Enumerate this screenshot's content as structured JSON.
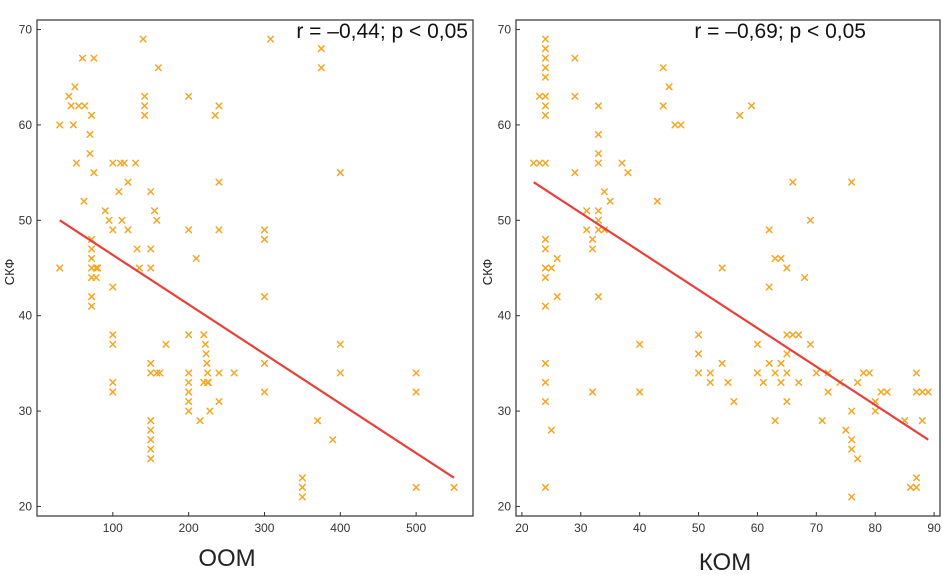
{
  "chart_data": [
    {
      "type": "scatter",
      "title": "",
      "xlabel": "ООМ",
      "ylabel": "СКФ",
      "xlim": [
        0,
        575
      ],
      "ylim": [
        19,
        71
      ],
      "xticks": [
        100,
        200,
        300,
        400,
        500
      ],
      "yticks": [
        20,
        30,
        40,
        50,
        60,
        70
      ],
      "annotation": "r = –0,44; p < 0,05",
      "trendline": {
        "x": [
          30,
          550
        ],
        "y": [
          50,
          23
        ]
      },
      "points": [
        [
          30,
          60
        ],
        [
          30,
          45
        ],
        [
          42,
          63
        ],
        [
          45,
          62
        ],
        [
          48,
          60
        ],
        [
          50,
          64
        ],
        [
          52,
          56
        ],
        [
          55,
          62
        ],
        [
          60,
          67
        ],
        [
          62,
          52
        ],
        [
          63,
          62
        ],
        [
          70,
          59
        ],
        [
          70,
          57
        ],
        [
          72,
          61
        ],
        [
          72,
          48
        ],
        [
          72,
          47
        ],
        [
          72,
          46
        ],
        [
          72,
          45
        ],
        [
          72,
          44
        ],
        [
          72,
          42
        ],
        [
          72,
          41
        ],
        [
          75,
          67
        ],
        [
          75,
          55
        ],
        [
          78,
          45
        ],
        [
          78,
          44
        ],
        [
          80,
          45
        ],
        [
          90,
          51
        ],
        [
          95,
          50
        ],
        [
          100,
          56
        ],
        [
          100,
          49
        ],
        [
          100,
          43
        ],
        [
          100,
          38
        ],
        [
          100,
          37
        ],
        [
          100,
          33
        ],
        [
          100,
          32
        ],
        [
          108,
          53
        ],
        [
          110,
          56
        ],
        [
          112,
          50
        ],
        [
          115,
          56
        ],
        [
          120,
          54
        ],
        [
          120,
          49
        ],
        [
          130,
          56
        ],
        [
          132,
          47
        ],
        [
          135,
          45
        ],
        [
          140,
          69
        ],
        [
          142,
          62
        ],
        [
          142,
          61
        ],
        [
          142,
          63
        ],
        [
          150,
          53
        ],
        [
          150,
          47
        ],
        [
          150,
          45
        ],
        [
          150,
          35
        ],
        [
          150,
          34
        ],
        [
          150,
          29
        ],
        [
          150,
          28
        ],
        [
          150,
          27
        ],
        [
          150,
          26
        ],
        [
          150,
          25
        ],
        [
          155,
          51
        ],
        [
          158,
          50
        ],
        [
          158,
          34
        ],
        [
          160,
          66
        ],
        [
          162,
          34
        ],
        [
          170,
          37
        ],
        [
          200,
          63
        ],
        [
          200,
          49
        ],
        [
          200,
          38
        ],
        [
          200,
          34
        ],
        [
          200,
          33
        ],
        [
          200,
          32
        ],
        [
          200,
          31
        ],
        [
          200,
          30
        ],
        [
          210,
          46
        ],
        [
          215,
          29
        ],
        [
          220,
          38
        ],
        [
          220,
          33
        ],
        [
          222,
          37
        ],
        [
          223,
          36
        ],
        [
          224,
          35
        ],
        [
          225,
          34
        ],
        [
          225,
          33
        ],
        [
          226,
          33
        ],
        [
          228,
          30
        ],
        [
          235,
          61
        ],
        [
          240,
          62
        ],
        [
          240,
          54
        ],
        [
          240,
          49
        ],
        [
          240,
          34
        ],
        [
          240,
          31
        ],
        [
          260,
          34
        ],
        [
          300,
          49
        ],
        [
          300,
          48
        ],
        [
          300,
          42
        ],
        [
          300,
          35
        ],
        [
          300,
          32
        ],
        [
          308,
          69
        ],
        [
          350,
          23
        ],
        [
          350,
          22
        ],
        [
          350,
          21
        ],
        [
          370,
          29
        ],
        [
          375,
          68
        ],
        [
          375,
          66
        ],
        [
          390,
          27
        ],
        [
          400,
          55
        ],
        [
          400,
          37
        ],
        [
          400,
          34
        ],
        [
          500,
          34
        ],
        [
          500,
          32
        ],
        [
          500,
          22
        ],
        [
          550,
          22
        ]
      ]
    },
    {
      "type": "scatter",
      "title": "",
      "xlabel": "КОМ",
      "ylabel": "СКФ",
      "xlim": [
        19,
        91
      ],
      "ylim": [
        19,
        71
      ],
      "xticks": [
        20,
        30,
        40,
        50,
        60,
        70,
        80,
        90
      ],
      "yticks": [
        20,
        30,
        40,
        50,
        60,
        70
      ],
      "annotation": "r = –0,69; p < 0,05",
      "trendline": {
        "x": [
          22,
          89
        ],
        "y": [
          54,
          27
        ]
      },
      "points": [
        [
          22,
          56
        ],
        [
          23,
          63
        ],
        [
          23,
          56
        ],
        [
          24,
          69
        ],
        [
          24,
          68
        ],
        [
          24,
          67
        ],
        [
          24,
          66
        ],
        [
          24,
          65
        ],
        [
          24,
          63
        ],
        [
          24,
          62
        ],
        [
          24,
          61
        ],
        [
          24,
          56
        ],
        [
          24,
          48
        ],
        [
          24,
          47
        ],
        [
          24,
          45
        ],
        [
          24,
          44
        ],
        [
          24,
          41
        ],
        [
          24,
          35
        ],
        [
          24,
          33
        ],
        [
          24,
          31
        ],
        [
          24,
          22
        ],
        [
          25,
          45
        ],
        [
          25,
          28
        ],
        [
          26,
          46
        ],
        [
          26,
          42
        ],
        [
          29,
          67
        ],
        [
          29,
          63
        ],
        [
          29,
          55
        ],
        [
          31,
          51
        ],
        [
          31,
          49
        ],
        [
          32,
          48
        ],
        [
          32,
          47
        ],
        [
          32,
          32
        ],
        [
          33,
          62
        ],
        [
          33,
          59
        ],
        [
          33,
          57
        ],
        [
          33,
          56
        ],
        [
          33,
          51
        ],
        [
          33,
          50
        ],
        [
          33,
          49
        ],
        [
          33,
          42
        ],
        [
          34,
          53
        ],
        [
          34,
          49
        ],
        [
          35,
          52
        ],
        [
          37,
          56
        ],
        [
          38,
          55
        ],
        [
          40,
          37
        ],
        [
          40,
          32
        ],
        [
          43,
          52
        ],
        [
          44,
          66
        ],
        [
          44,
          62
        ],
        [
          45,
          64
        ],
        [
          46,
          60
        ],
        [
          47,
          60
        ],
        [
          50,
          38
        ],
        [
          50,
          36
        ],
        [
          50,
          34
        ],
        [
          52,
          33
        ],
        [
          52,
          34
        ],
        [
          54,
          45
        ],
        [
          54,
          35
        ],
        [
          55,
          33
        ],
        [
          56,
          31
        ],
        [
          57,
          61
        ],
        [
          59,
          62
        ],
        [
          60,
          37
        ],
        [
          60,
          34
        ],
        [
          61,
          33
        ],
        [
          62,
          49
        ],
        [
          62,
          43
        ],
        [
          62,
          35
        ],
        [
          63,
          46
        ],
        [
          63,
          34
        ],
        [
          63,
          29
        ],
        [
          64,
          46
        ],
        [
          64,
          35
        ],
        [
          64,
          33
        ],
        [
          65,
          45
        ],
        [
          65,
          38
        ],
        [
          65,
          36
        ],
        [
          65,
          34
        ],
        [
          65,
          31
        ],
        [
          66,
          54
        ],
        [
          66,
          38
        ],
        [
          67,
          38
        ],
        [
          67,
          33
        ],
        [
          68,
          44
        ],
        [
          69,
          50
        ],
        [
          69,
          37
        ],
        [
          70,
          34
        ],
        [
          71,
          29
        ],
        [
          72,
          34
        ],
        [
          72,
          32
        ],
        [
          74,
          33
        ],
        [
          75,
          28
        ],
        [
          76,
          54
        ],
        [
          76,
          27
        ],
        [
          76,
          30
        ],
        [
          76,
          26
        ],
        [
          76,
          21
        ],
        [
          77,
          25
        ],
        [
          77,
          33
        ],
        [
          78,
          34
        ],
        [
          79,
          34
        ],
        [
          80,
          31
        ],
        [
          80,
          30
        ],
        [
          81,
          32
        ],
        [
          82,
          32
        ],
        [
          85,
          29
        ],
        [
          86,
          22
        ],
        [
          87,
          34
        ],
        [
          87,
          32
        ],
        [
          87,
          23
        ],
        [
          87,
          22
        ],
        [
          88,
          32
        ],
        [
          88,
          29
        ],
        [
          89,
          32
        ]
      ]
    }
  ]
}
